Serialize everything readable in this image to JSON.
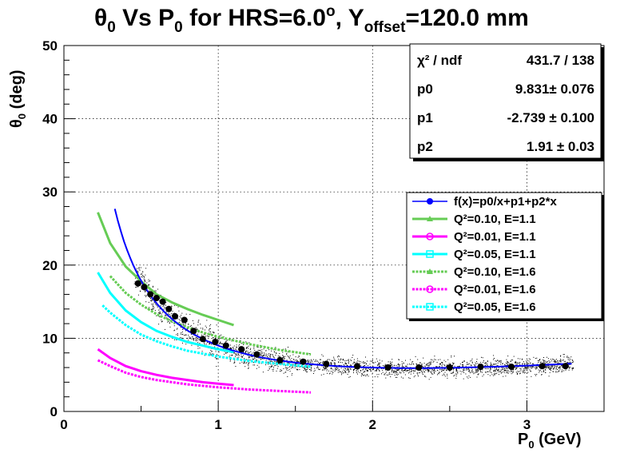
{
  "chart_data": {
    "type": "scatter",
    "title": {
      "base": "θ",
      "base_sub": "0",
      "mid1": " Vs P",
      "mid1_sub": "0",
      "mid2": " for HRS=6.0",
      "mid2_sup": "o",
      "mid3": ", Y",
      "mid3_sub": "offset",
      "tail": "=120.0 mm"
    },
    "xlabel": {
      "base": "P",
      "sub": "0",
      "rest": " (GeV)"
    },
    "ylabel": {
      "base": "θ",
      "sub": "0",
      "rest": " (deg)"
    },
    "xlim": [
      0,
      3.5
    ],
    "ylim": [
      0,
      50
    ],
    "x_ticks": [
      "0",
      "1",
      "2",
      "3"
    ],
    "x_tick_values": [
      0,
      1,
      2,
      3
    ],
    "y_ticks": [
      "0",
      "10",
      "20",
      "30",
      "40",
      "50"
    ],
    "y_tick_values": [
      0,
      10,
      20,
      30,
      40,
      50
    ],
    "grid": true,
    "stats_box": {
      "rows": [
        {
          "label": "χ² / ndf",
          "value": "431.7 / 138"
        },
        {
          "label": "p0",
          "value": "9.831± 0.076"
        },
        {
          "label": "p1",
          "value": "-2.739 ± 0.100"
        },
        {
          "label": "p2",
          "value": "1.91 ± 0.03"
        }
      ]
    },
    "fit": {
      "name": "f(x)=p0/x+p1+p2*x",
      "p0": 9.831,
      "p1": -2.739,
      "p2": 1.91,
      "xrange": [
        0.33,
        3.3
      ],
      "color": "#0000ff"
    },
    "fit_points": {
      "color": "#000000",
      "x": [
        0.48,
        0.52,
        0.56,
        0.6,
        0.64,
        0.68,
        0.72,
        0.78,
        0.84,
        0.9,
        0.98,
        1.05,
        1.15,
        1.25,
        1.4,
        1.55,
        1.7,
        1.9,
        2.1,
        2.3,
        2.5,
        2.7,
        2.9,
        3.1,
        3.25
      ],
      "y": [
        17.5,
        17.0,
        16.0,
        15.5,
        15.0,
        14.0,
        13.0,
        12.5,
        11.0,
        9.9,
        9.5,
        9.0,
        8.5,
        7.8,
        7.0,
        6.8,
        6.5,
        6.2,
        6.0,
        6.0,
        6.0,
        6.1,
        6.1,
        6.2,
        6.2
      ]
    },
    "scatter_band": {
      "color": "#000000",
      "description_free": true
    },
    "series": [
      {
        "name": "Q²=0.10, E=1.1",
        "color": "#66cc55",
        "style": "solid",
        "marker": "triangle",
        "x": [
          0.22,
          0.3,
          0.4,
          0.5,
          0.6,
          0.7,
          0.8,
          0.9,
          1.0,
          1.1
        ],
        "y": [
          27.2,
          23.0,
          19.8,
          17.8,
          16.0,
          14.9,
          14.0,
          13.2,
          12.5,
          11.8
        ]
      },
      {
        "name": "Q²=0.01, E=1.1",
        "color": "#ff00ff",
        "style": "solid",
        "marker": "circle",
        "x": [
          0.22,
          0.3,
          0.4,
          0.5,
          0.6,
          0.7,
          0.8,
          0.9,
          1.0,
          1.1
        ],
        "y": [
          8.5,
          7.3,
          6.2,
          5.5,
          5.0,
          4.6,
          4.3,
          4.0,
          3.8,
          3.6
        ]
      },
      {
        "name": "Q²=0.05, E=1.1",
        "color": "#00ffff",
        "style": "solid",
        "marker": "cross",
        "x": [
          0.22,
          0.3,
          0.4,
          0.5,
          0.6,
          0.7,
          0.8,
          0.9,
          1.0,
          1.1
        ],
        "y": [
          19.0,
          16.2,
          13.8,
          12.2,
          11.0,
          10.2,
          9.5,
          9.0,
          8.5,
          8.1
        ]
      },
      {
        "name": "Q²=0.10, E=1.6",
        "color": "#66cc55",
        "style": "dashed",
        "marker": "triangle",
        "x": [
          0.3,
          0.4,
          0.5,
          0.6,
          0.7,
          0.8,
          0.9,
          1.0,
          1.1,
          1.2,
          1.3,
          1.4,
          1.5,
          1.6
        ],
        "y": [
          18.5,
          16.2,
          14.6,
          13.3,
          12.3,
          11.5,
          10.8,
          10.2,
          9.7,
          9.2,
          8.8,
          8.4,
          8.1,
          7.8
        ]
      },
      {
        "name": "Q²=0.01, E=1.6",
        "color": "#ff00ff",
        "style": "dashed",
        "marker": "circle",
        "x": [
          0.22,
          0.3,
          0.4,
          0.5,
          0.6,
          0.7,
          0.8,
          0.9,
          1.0,
          1.2,
          1.4,
          1.6
        ],
        "y": [
          7.0,
          6.2,
          5.3,
          4.7,
          4.3,
          4.0,
          3.7,
          3.5,
          3.3,
          3.0,
          2.8,
          2.6
        ]
      },
      {
        "name": "Q²=0.05, E=1.6",
        "color": "#00ffff",
        "style": "dashed",
        "marker": "cross",
        "x": [
          0.25,
          0.3,
          0.4,
          0.5,
          0.6,
          0.7,
          0.8,
          0.9,
          1.0,
          1.2,
          1.4,
          1.6
        ],
        "y": [
          14.5,
          13.5,
          11.8,
          10.5,
          9.6,
          8.9,
          8.3,
          7.9,
          7.5,
          6.9,
          6.5,
          6.1
        ]
      }
    ],
    "legend_placement": "middle-right"
  }
}
